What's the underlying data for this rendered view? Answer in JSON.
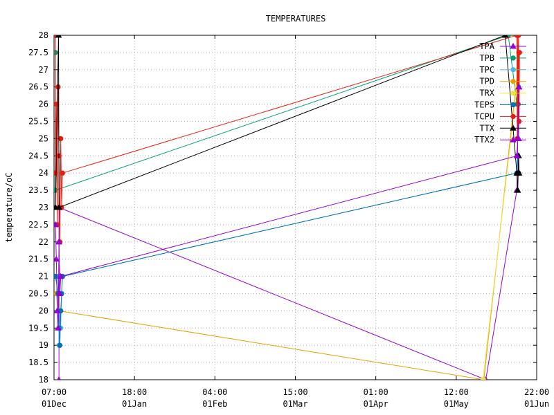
{
  "chart_data": {
    "type": "line",
    "title": "TEMPERATURES",
    "xlabel": "",
    "ylabel": "temperature/oC",
    "ylim": [
      18,
      28
    ],
    "yticks": [
      "18",
      "18.5",
      "19",
      "19.5",
      "20",
      "20.5",
      "21",
      "21.5",
      "22",
      "22.5",
      "23",
      "23.5",
      "24",
      "24.5",
      "25",
      "25.5",
      "26",
      "26.5",
      "27",
      "27.5",
      "28"
    ],
    "x_axis": {
      "type": "time",
      "range": [
        "Dec 01 07:00",
        "Jun 01 22:00"
      ],
      "ticks": [
        {
          "time": "07:00",
          "date": "01Dec"
        },
        {
          "time": "18:00",
          "date": "01Jan"
        },
        {
          "time": "04:00",
          "date": "01Feb"
        },
        {
          "time": "15:00",
          "date": "01Mar"
        },
        {
          "time": "01:00",
          "date": "01Apr"
        },
        {
          "time": "12:00",
          "date": "01May"
        },
        {
          "time": "22:00",
          "date": "01Jun"
        }
      ]
    },
    "grid": true,
    "legend_position": "top-right",
    "series": [
      {
        "name": "TPA",
        "color": "#9400d3",
        "marker": "triangle",
        "points": [
          [
            "Dec 03 04:00",
            18
          ],
          [
            "Dec 03 04:00",
            21
          ],
          [
            "Dec 03 04:00",
            22
          ],
          [
            "Dec 03 04:00",
            23
          ],
          [
            "May 13 16:00",
            18
          ],
          [
            "May 25 10:00",
            23.5
          ],
          [
            "May 25 14:00",
            24
          ],
          [
            "May 25 18:00",
            25
          ],
          [
            "May 25 22:00",
            26.5
          ],
          [
            "May 26 02:00",
            25
          ],
          [
            "May 26 06:00",
            26.5
          ]
        ]
      },
      {
        "name": "TPB",
        "color": "#009e73",
        "marker": "circle",
        "points": [
          [
            "Dec 01 20:00",
            27.5
          ],
          [
            "Dec 01 20:00",
            23.5
          ],
          [
            "May 22 04:00",
            28
          ],
          [
            "May 25 10:00",
            26
          ],
          [
            "May 25 18:00",
            27
          ],
          [
            "May 26 02:00",
            26.5
          ]
        ]
      },
      {
        "name": "TPC",
        "color": "#56b4e9",
        "marker": "circle",
        "points": [
          [
            "Dec 02 12:00",
            21
          ],
          [
            "Dec 03 06:00",
            19
          ],
          [
            "Dec 03 12:00",
            20
          ],
          [
            "Dec 03 20:00",
            19.5
          ],
          [
            "Dec 04 04:00",
            20.5
          ],
          [
            "Dec 04 12:00",
            21
          ],
          [
            "May 25 10:00",
            24
          ],
          [
            "May 25 18:00",
            24.5
          ],
          [
            "May 26 02:00",
            24
          ]
        ]
      },
      {
        "name": "TPD",
        "color": "#e69f00",
        "marker": "circle",
        "points": [
          [
            "Dec 02 04:00",
            20.5
          ],
          [
            "Dec 03 04:00",
            20
          ],
          [
            "May 12 22:00",
            18
          ],
          [
            "May 25 18:00",
            27
          ],
          [
            "May 26 02:00",
            27.5
          ]
        ]
      },
      {
        "name": "TRX",
        "color": "#f0e442",
        "marker": "circle",
        "points": [
          [
            "May 12 14:00",
            18
          ],
          [
            "May 25 10:00",
            26.5
          ],
          [
            "May 25 18:00",
            27
          ]
        ]
      },
      {
        "name": "TEPS",
        "color": "#0072b2",
        "marker": "circle",
        "points": [
          [
            "Dec 01 20:00",
            21
          ],
          [
            "Dec 02 20:00",
            20.5
          ],
          [
            "Dec 03 04:00",
            19.5
          ],
          [
            "Dec 03 12:00",
            19
          ],
          [
            "Dec 03 20:00",
            20
          ],
          [
            "Dec 04 04:00",
            20.5
          ],
          [
            "Dec 04 12:00",
            21
          ],
          [
            "May 25 10:00",
            24
          ],
          [
            "May 25 18:00",
            24.5
          ],
          [
            "May 26 02:00",
            24
          ]
        ]
      },
      {
        "name": "TCPU",
        "color": "#e51e10",
        "marker": "circle",
        "points": [
          [
            "Dec 01 20:00",
            28
          ],
          [
            "Dec 01 20:00",
            24
          ],
          [
            "Dec 02 04:00",
            26
          ],
          [
            "Dec 02 12:00",
            22.5
          ],
          [
            "Dec 02 20:00",
            26.5
          ],
          [
            "Dec 03 04:00",
            24.5
          ],
          [
            "Dec 03 12:00",
            22
          ],
          [
            "Dec 03 20:00",
            25
          ],
          [
            "Dec 04 04:00",
            23
          ],
          [
            "Dec 04 12:00",
            24
          ],
          [
            "May 25 10:00",
            28
          ],
          [
            "May 25 14:00",
            25
          ],
          [
            "May 25 18:00",
            28
          ],
          [
            "May 25 22:00",
            26
          ],
          [
            "May 26 02:00",
            28
          ],
          [
            "May 26 06:00",
            25.5
          ],
          [
            "May 26 10:00",
            27.5
          ]
        ]
      },
      {
        "name": "TTX",
        "color": "#000000",
        "marker": "triangle",
        "points": [
          [
            "Dec 01 20:00",
            23
          ],
          [
            "Dec 03 00:00",
            28
          ],
          [
            "Dec 03 04:00",
            23
          ],
          [
            "May 21 00:00",
            28
          ],
          [
            "May 25 10:00",
            24
          ],
          [
            "May 25 18:00",
            23.5
          ],
          [
            "May 26 02:00",
            24.5
          ],
          [
            "May 26 06:00",
            24
          ]
        ]
      },
      {
        "name": "TTX2",
        "color": "#9400d3",
        "marker": "triangle",
        "points": [
          [
            "Dec 01 20:00",
            22.5
          ],
          [
            "Dec 02 04:00",
            21.5
          ],
          [
            "Dec 02 12:00",
            20
          ],
          [
            "Dec 02 20:00",
            19.5
          ],
          [
            "Dec 03 04:00",
            22
          ],
          [
            "Dec 03 12:00",
            20.5
          ],
          [
            "Dec 03 20:00",
            21
          ],
          [
            "May 25 10:00",
            24.5
          ],
          [
            "May 25 18:00",
            25
          ],
          [
            "May 26 02:00",
            26.5
          ]
        ]
      }
    ]
  }
}
